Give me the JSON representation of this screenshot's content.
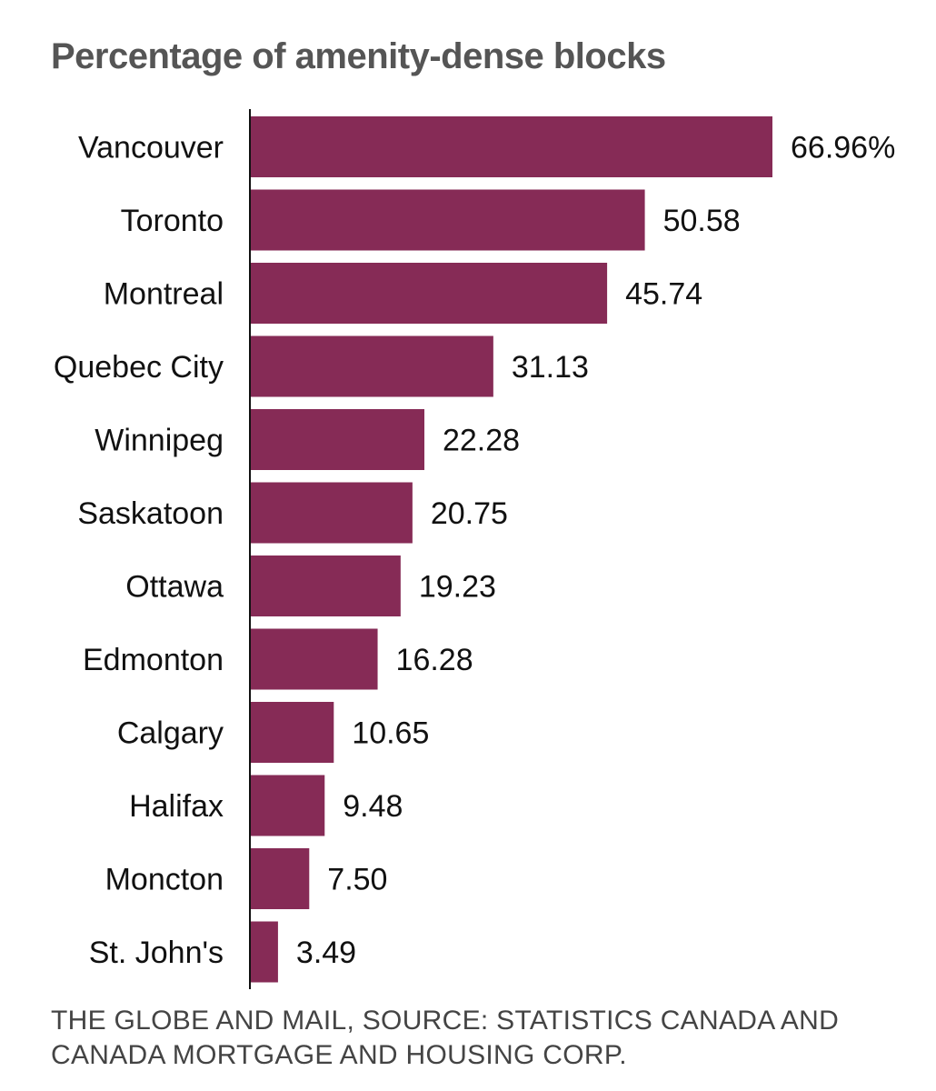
{
  "chart_data": {
    "type": "bar",
    "orientation": "horizontal",
    "title": "Percentage of amenity-dense blocks",
    "categories": [
      "Vancouver",
      "Toronto",
      "Montreal",
      "Quebec City",
      "Winnipeg",
      "Saskatoon",
      "Ottawa",
      "Edmonton",
      "Calgary",
      "Halifax",
      "Moncton",
      "St. John's"
    ],
    "values": [
      66.96,
      50.58,
      45.74,
      31.13,
      22.28,
      20.75,
      19.23,
      16.28,
      10.65,
      9.48,
      7.5,
      3.49
    ],
    "value_labels": [
      "66.96%",
      "50.58",
      "45.74",
      "31.13",
      "22.28",
      "20.75",
      "19.23",
      "16.28",
      "10.65",
      "9.48",
      "7.50",
      "3.49"
    ],
    "xlim": [
      0,
      66.96
    ],
    "xlabel": "",
    "ylabel": "",
    "grid": false,
    "bar_color": "#862b56",
    "source": "THE GLOBE AND MAIL, SOURCE: STATISTICS CANADA AND CANADA MORTGAGE AND HOUSING CORP."
  }
}
